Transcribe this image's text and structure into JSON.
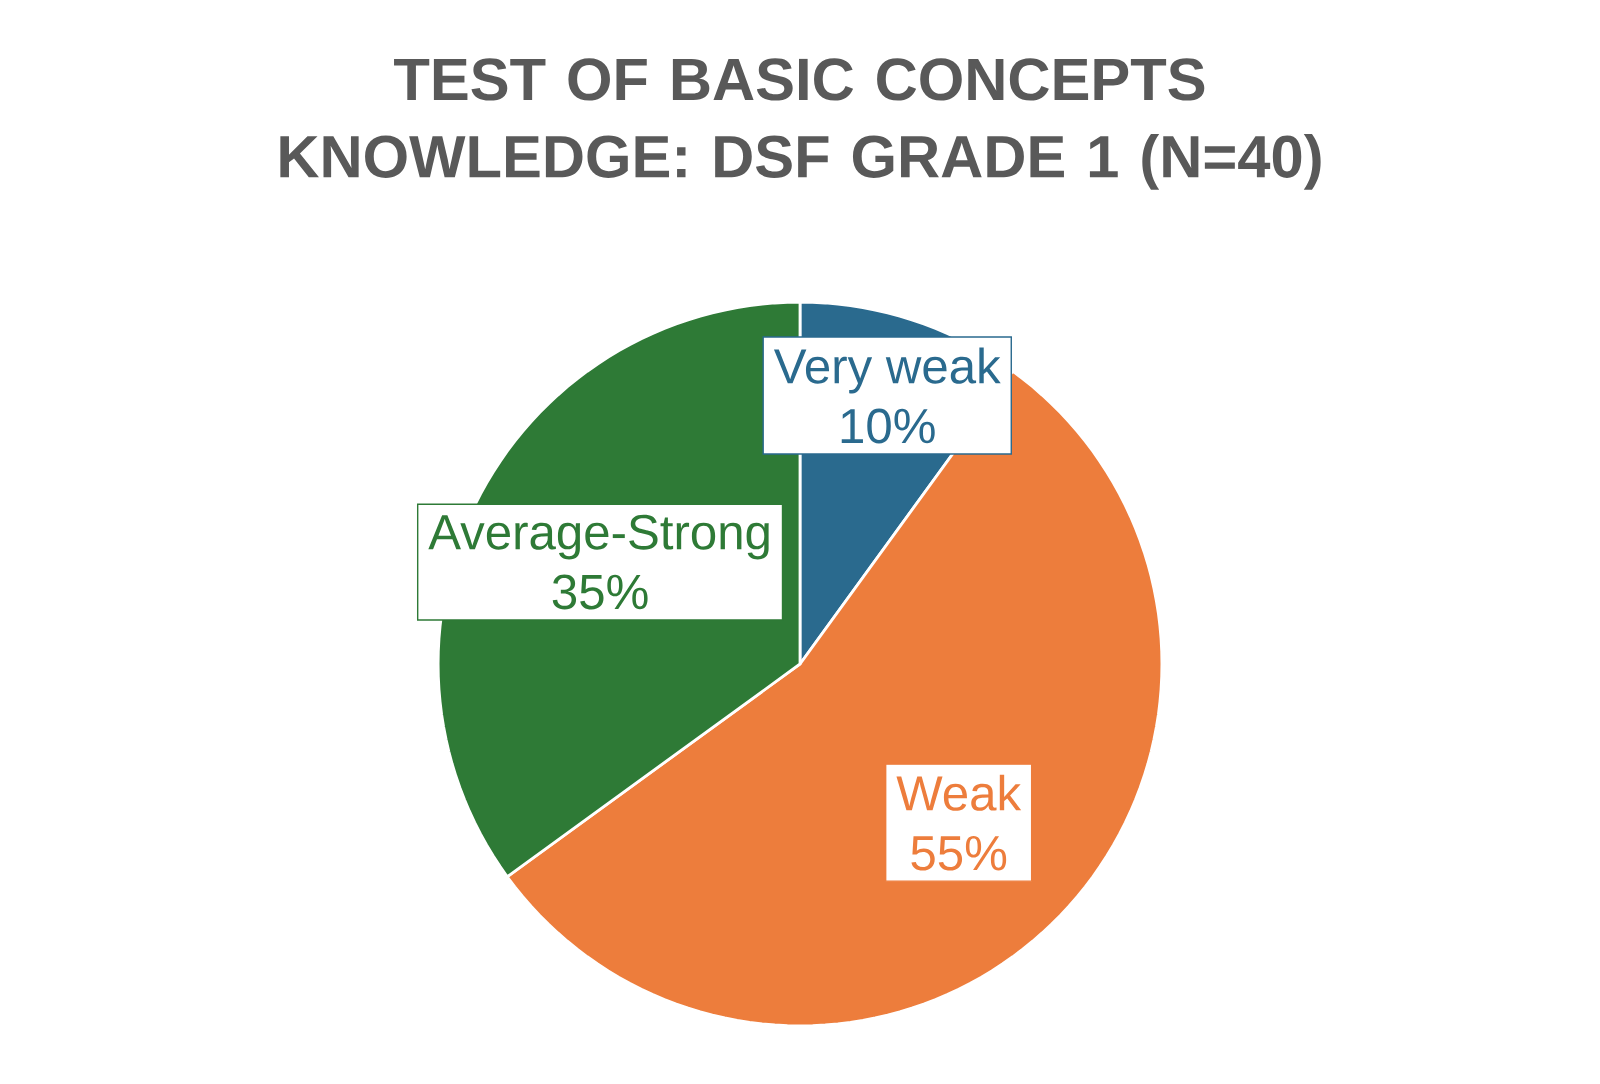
{
  "chart_data": {
    "type": "pie",
    "title": "TEST OF BASIC CONCEPTS KNOWLEDGE: DSF GRADE 1 (N=40)",
    "categories": [
      "Very weak",
      "Weak",
      "Average-Strong"
    ],
    "values": [
      10,
      55,
      35
    ],
    "value_labels": [
      "10%",
      "55%",
      "35%"
    ],
    "colors": [
      "#2a6a8e",
      "#ed7d3c",
      "#2e7a36"
    ]
  }
}
